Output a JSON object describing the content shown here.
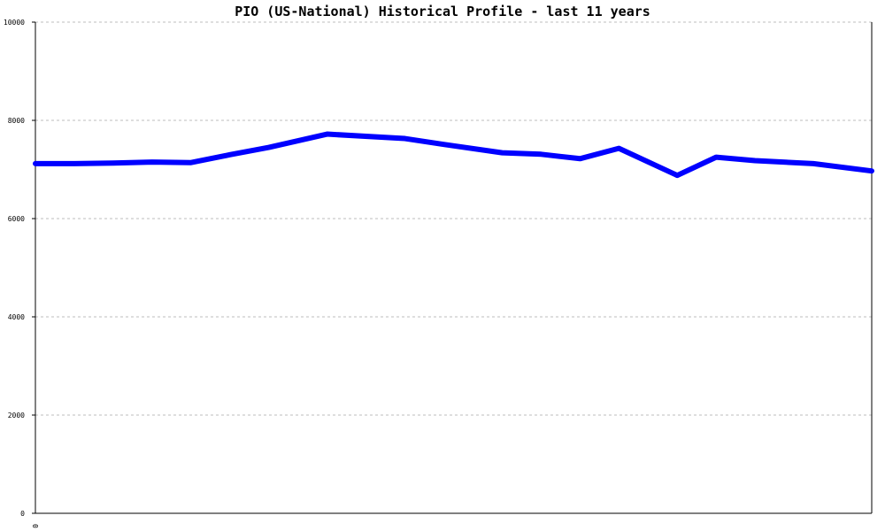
{
  "chart_data": {
    "type": "line",
    "title": "PIO (US-National) Historical Profile - last 11 years",
    "xlabel": "",
    "ylabel": "",
    "ylim": [
      0,
      10000
    ],
    "yticks": [
      0,
      2000,
      4000,
      6000,
      8000,
      10000
    ],
    "xtick_labels": [
      "0"
    ],
    "grid": true,
    "series": [
      {
        "color": "#0000ff",
        "values": [
          7120,
          7120,
          7130,
          7150,
          7140,
          7300,
          7450,
          7720,
          7630,
          7510,
          7340,
          7310,
          7220,
          7430,
          6880,
          7250,
          7180,
          7120,
          6970
        ]
      }
    ],
    "x": [
      0,
      2,
      4,
      6,
      8,
      10,
      12,
      15,
      19,
      21,
      24,
      26,
      28,
      30,
      33,
      35,
      37,
      40,
      43
    ]
  }
}
